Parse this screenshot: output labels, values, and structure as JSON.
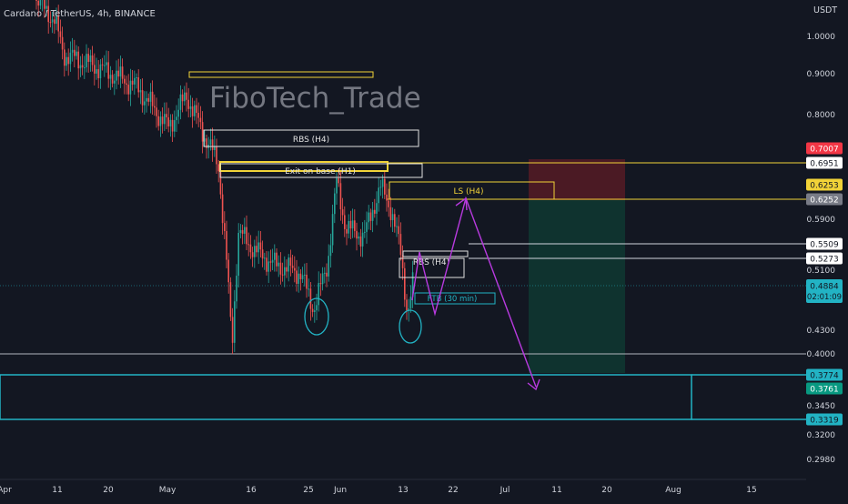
{
  "header": {
    "symbol_line": "Cardano / TetherUS, 4h, BINANCE",
    "currency": "USDT"
  },
  "watermark": "FiboTech_Trade",
  "chart_data": {
    "type": "candlestick",
    "title": "Cardano / TetherUS, 4h, BINANCE",
    "ylabel": "USDT",
    "scale": "log",
    "ylim": [
      0.28,
      1.08
    ],
    "y_ticks": [
      "1.0000",
      "0.9000",
      "0.8000",
      "0.5900",
      "0.5100",
      "0.4300",
      "0.4000",
      "0.3450",
      "0.3200",
      "0.2980"
    ],
    "x_ticks": [
      "Apr",
      "11",
      "20",
      "May",
      "16",
      "25",
      "Jun",
      "13",
      "22",
      "Jul",
      "11",
      "20",
      "Aug",
      "15"
    ],
    "grid": false,
    "colors": {
      "up": "#26a69a",
      "down": "#ef5350",
      "background": "#131722"
    },
    "zones": [
      {
        "label": "",
        "color": "#f2d338"
      },
      {
        "label": "RBS (H4)",
        "color": "#e0e0e0"
      },
      {
        "label": "",
        "color": "#f2d338"
      },
      {
        "label": "Exit on base (H1)",
        "color": "#e0e0e0"
      },
      {
        "label": "LS (H4)",
        "color": "#f2d338"
      },
      {
        "label": "RBS (H4)",
        "color": "#e0e0e0"
      },
      {
        "label": "FTB (30 min)",
        "color": "#22b3c4"
      }
    ],
    "price_labels": [
      {
        "text": "0.7007",
        "bg": "#f23645",
        "fg": "#ffffff"
      },
      {
        "text": "0.6951",
        "bg": "#ffffff",
        "fg": "#131722",
        "line": "#f2d338"
      },
      {
        "text": "0.6253",
        "bg": "#f2d338",
        "fg": "#131722"
      },
      {
        "text": "0.6252",
        "bg": "#787b86",
        "fg": "#ffffff",
        "line": "#f2d338"
      },
      {
        "text": "0.5509",
        "bg": "#ffffff",
        "fg": "#131722",
        "line": "#d1d4dc"
      },
      {
        "text": "0.5273",
        "bg": "#ffffff",
        "fg": "#131722",
        "line": "#d1d4dc"
      },
      {
        "text": "0.4884",
        "bg": "#22b3c4",
        "fg": "#131722",
        "sub": "02:01:09"
      },
      {
        "text": "0.3774",
        "bg": "#22b3c4",
        "fg": "#131722",
        "line": "#22b3c4"
      },
      {
        "text": "0.3761",
        "bg": "#089981",
        "fg": "#ffffff"
      },
      {
        "text": "0.3319",
        "bg": "#22b3c4",
        "fg": "#131722",
        "line": "#22b3c4"
      }
    ],
    "support_level": 0.4
  }
}
